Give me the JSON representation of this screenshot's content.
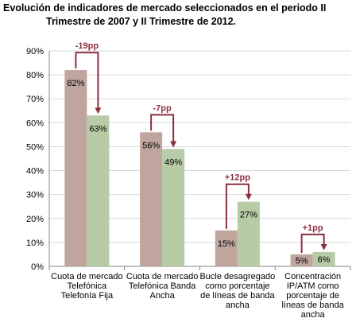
{
  "chart_data": {
    "type": "bar",
    "title_line1": "Evolución de indicadores de mercado seleccionados en el periodo II",
    "title_line2": "Trimestre de 2007 y II Trimestre de 2012.",
    "y_ticks": [
      "0%",
      "10%",
      "20%",
      "30%",
      "40%",
      "50%",
      "60%",
      "70%",
      "80%",
      "90%"
    ],
    "ylim": [
      0,
      90
    ],
    "grid": true,
    "categories": [
      [
        "Cuota de mercado",
        "Telefónica",
        "Telefonía Fija"
      ],
      [
        "Cuota de mercado",
        "Telefónica Banda",
        "Ancha"
      ],
      [
        "Bucle desagregado",
        "como porcentaje",
        "de líneas de banda",
        "ancha"
      ],
      [
        "Concentración",
        "IP/ATM como",
        "porcentaje de",
        "líneas de banda",
        "ancha"
      ]
    ],
    "series": [
      {
        "values": [
          82,
          56,
          15,
          5
        ],
        "labels": [
          "82%",
          "56%",
          "15%",
          "5%"
        ],
        "color": "#C0A59E"
      },
      {
        "values": [
          63,
          49,
          27,
          6
        ],
        "labels": [
          "63%",
          "49%",
          "27%",
          "6%"
        ],
        "color": "#B7CBA6"
      }
    ],
    "changes": [
      "-19pp",
      "-7pp",
      "+12pp",
      "+1pp"
    ],
    "change_color": "#8B2F3F"
  }
}
